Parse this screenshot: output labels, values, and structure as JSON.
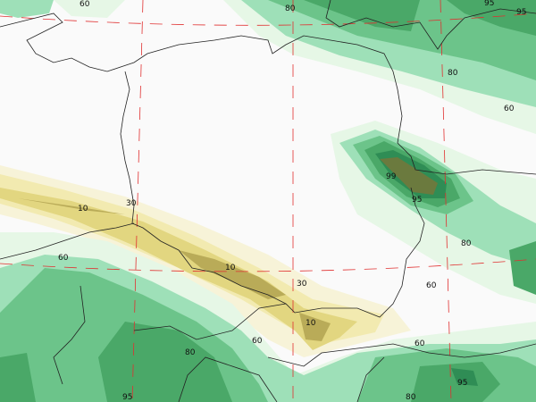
{
  "colors": {
    "background": "#fafafa",
    "rh60": "#e6f7e6",
    "rh70": "#9ee0b8",
    "rh80": "#6cc48a",
    "rh90": "#4aa868",
    "rh95": "#2f8d55",
    "rh99": "#6b7a3e",
    "dry30": "#f2eab0",
    "dry20": "#e2d680",
    "dry10": "#b9ab58",
    "grid": "#e03030",
    "borders": "#222222"
  },
  "contour_labels": [
    {
      "text": "60"
    },
    {
      "text": "80"
    },
    {
      "text": "95"
    },
    {
      "text": "95"
    },
    {
      "text": "80"
    },
    {
      "text": "60"
    },
    {
      "text": "99"
    },
    {
      "text": "95"
    },
    {
      "text": "10"
    },
    {
      "text": "30"
    },
    {
      "text": "60"
    },
    {
      "text": "80"
    },
    {
      "text": "10"
    },
    {
      "text": "60"
    },
    {
      "text": "30"
    },
    {
      "text": "10"
    },
    {
      "text": "60"
    },
    {
      "text": "60"
    },
    {
      "text": "80"
    },
    {
      "text": "95"
    },
    {
      "text": "80"
    },
    {
      "text": "95"
    }
  ]
}
